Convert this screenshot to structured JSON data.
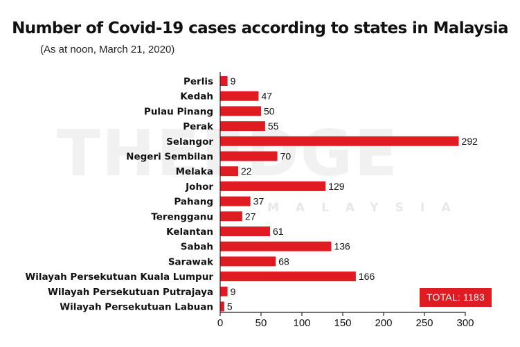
{
  "title": "Number of Covid-19 cases according to states in Malaysia",
  "subtitle": "(As at noon, March 21, 2020)",
  "watermark": {
    "main": "THEEDGE",
    "sub": "MALAYSIA"
  },
  "total_label": "TOTAL: 1183",
  "colors": {
    "bar": "#e11b22",
    "axis": "#222222",
    "badge": "#e11b22"
  },
  "chart_data": {
    "type": "bar",
    "orientation": "horizontal",
    "title": "Number of Covid-19 cases according to states in Malaysia",
    "subtitle": "(As at noon, March 21, 2020)",
    "categories": [
      "Perlis",
      "Kedah",
      "Pulau Pinang",
      "Perak",
      "Selangor",
      "Negeri Sembilan",
      "Melaka",
      "Johor",
      "Pahang",
      "Terengganu",
      "Kelantan",
      "Sabah",
      "Sarawak",
      "Wilayah Persekutuan Kuala Lumpur",
      "Wilayah Persekutuan Putrajaya",
      "Wilayah Persekutuan Labuan"
    ],
    "values": [
      9,
      47,
      50,
      55,
      292,
      70,
      22,
      129,
      37,
      27,
      61,
      136,
      68,
      166,
      9,
      5
    ],
    "xlim": [
      0,
      300
    ],
    "xticks": [
      0,
      50,
      100,
      150,
      200,
      250,
      300
    ],
    "grid": false,
    "legend": "none"
  }
}
